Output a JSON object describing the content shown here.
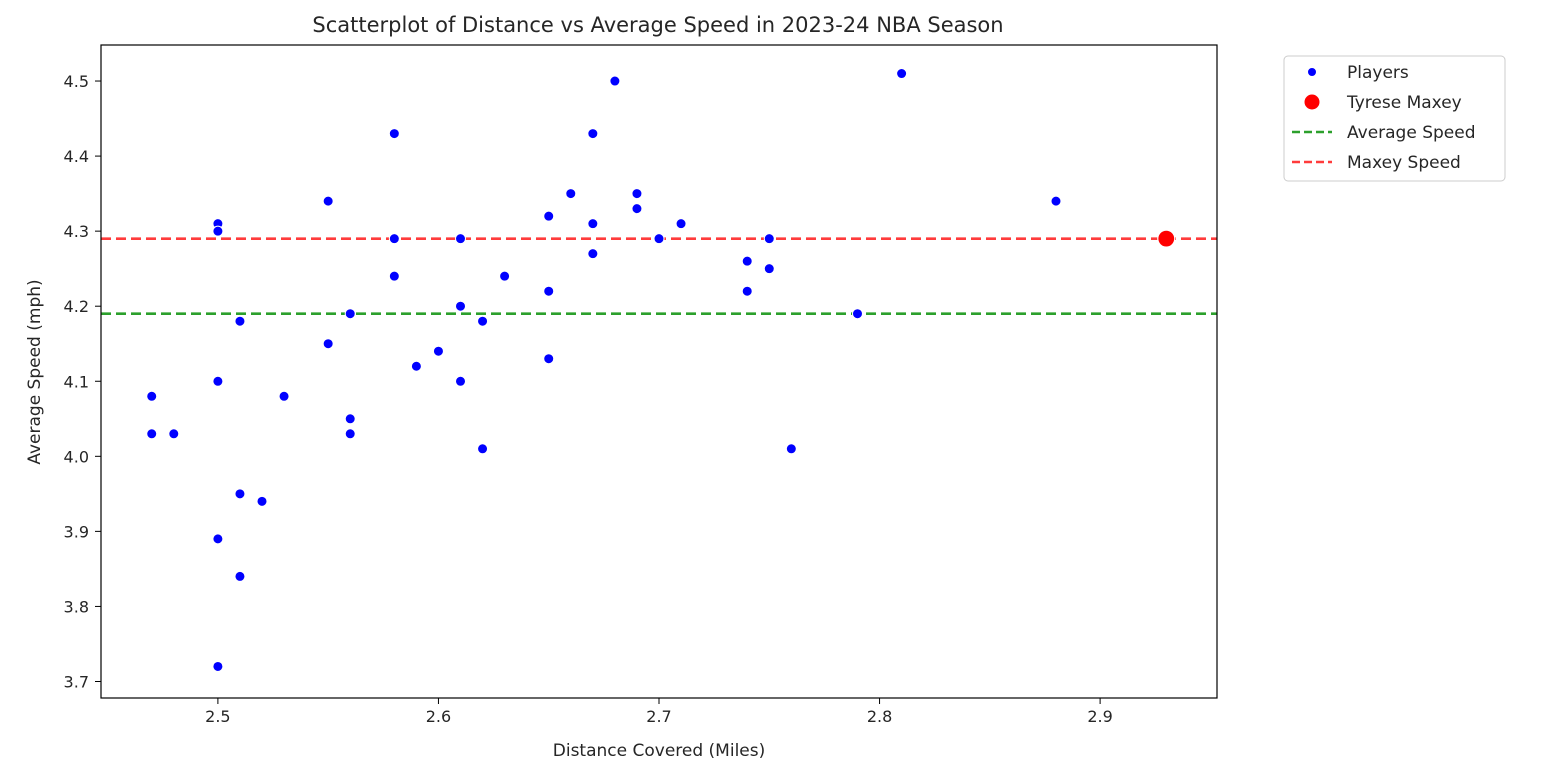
{
  "chart_data": {
    "type": "scatter",
    "title": "Scatterplot of Distance vs Average Speed in 2023-24 NBA Season",
    "xlabel": "Distance Covered (Miles)",
    "ylabel": "Average Speed (mph)",
    "xlim": [
      2.447,
      2.953
    ],
    "ylim": [
      3.678,
      4.548
    ],
    "xticks": [
      2.5,
      2.6,
      2.7,
      2.8,
      2.9
    ],
    "xtick_labels": [
      "2.5",
      "2.6",
      "2.7",
      "2.8",
      "2.9"
    ],
    "yticks": [
      3.7,
      3.8,
      3.9,
      4.0,
      4.1,
      4.2,
      4.3,
      4.4,
      4.5
    ],
    "ytick_labels": [
      "3.7",
      "3.8",
      "3.9",
      "4.0",
      "4.1",
      "4.2",
      "4.3",
      "4.4",
      "4.5"
    ],
    "grid": false,
    "legend_position": "outside-top-right",
    "series": [
      {
        "name": "Players",
        "kind": "scatter",
        "color": "#0000ff",
        "points": [
          [
            2.47,
            4.08
          ],
          [
            2.47,
            4.03
          ],
          [
            2.48,
            4.03
          ],
          [
            2.5,
            4.31
          ],
          [
            2.5,
            4.3
          ],
          [
            2.5,
            4.1
          ],
          [
            2.5,
            3.89
          ],
          [
            2.5,
            3.72
          ],
          [
            2.51,
            4.18
          ],
          [
            2.51,
            3.95
          ],
          [
            2.51,
            3.84
          ],
          [
            2.52,
            3.94
          ],
          [
            2.53,
            4.08
          ],
          [
            2.55,
            4.34
          ],
          [
            2.55,
            4.15
          ],
          [
            2.56,
            4.19
          ],
          [
            2.56,
            4.05
          ],
          [
            2.56,
            4.03
          ],
          [
            2.58,
            4.43
          ],
          [
            2.58,
            4.29
          ],
          [
            2.58,
            4.24
          ],
          [
            2.59,
            4.12
          ],
          [
            2.6,
            4.14
          ],
          [
            2.61,
            4.29
          ],
          [
            2.61,
            4.2
          ],
          [
            2.61,
            4.1
          ],
          [
            2.62,
            4.18
          ],
          [
            2.62,
            4.01
          ],
          [
            2.63,
            4.24
          ],
          [
            2.65,
            4.32
          ],
          [
            2.65,
            4.22
          ],
          [
            2.65,
            4.13
          ],
          [
            2.66,
            4.35
          ],
          [
            2.67,
            4.43
          ],
          [
            2.67,
            4.31
          ],
          [
            2.67,
            4.27
          ],
          [
            2.68,
            4.5
          ],
          [
            2.69,
            4.35
          ],
          [
            2.69,
            4.33
          ],
          [
            2.7,
            4.29
          ],
          [
            2.71,
            4.31
          ],
          [
            2.74,
            4.26
          ],
          [
            2.74,
            4.22
          ],
          [
            2.75,
            4.29
          ],
          [
            2.75,
            4.25
          ],
          [
            2.76,
            4.01
          ],
          [
            2.79,
            4.19
          ],
          [
            2.81,
            4.51
          ],
          [
            2.88,
            4.34
          ]
        ]
      },
      {
        "name": "Tyrese Maxey",
        "kind": "scatter",
        "color": "#ff0000",
        "points": [
          [
            2.93,
            4.29
          ]
        ]
      },
      {
        "name": "Average Speed",
        "kind": "hline",
        "color": "#2ca02c",
        "y": 4.19
      },
      {
        "name": "Maxey Speed",
        "kind": "hline",
        "color": "#ff3b3b",
        "y": 4.29
      }
    ]
  }
}
